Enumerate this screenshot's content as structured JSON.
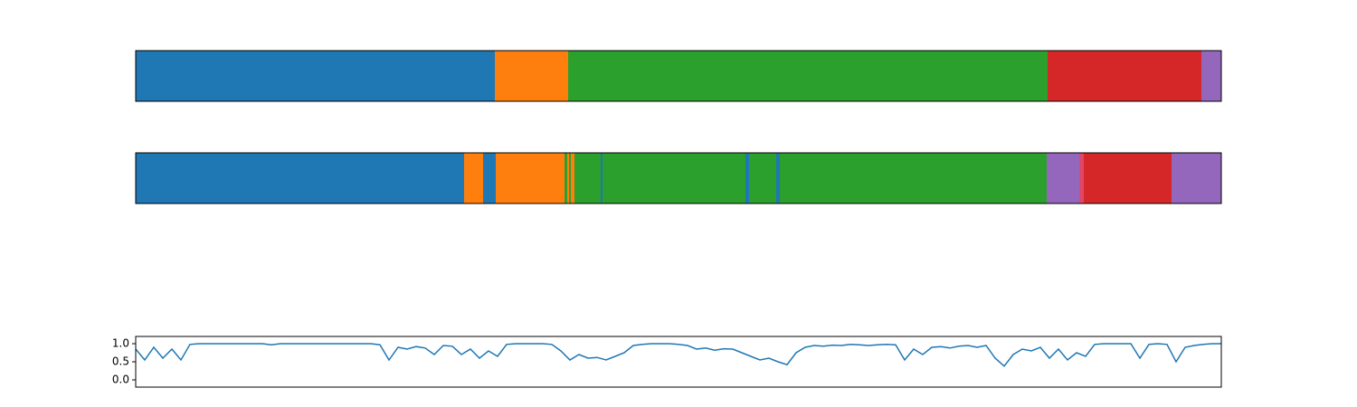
{
  "chart_data": [
    {
      "type": "segments",
      "xlim": [
        0,
        1200
      ],
      "segments": [
        {
          "start": 0,
          "end": 397,
          "color": "#1f77b4"
        },
        {
          "start": 397,
          "end": 478,
          "color": "#ff7f0e"
        },
        {
          "start": 478,
          "end": 1008,
          "color": "#2ca02c"
        },
        {
          "start": 1008,
          "end": 1178,
          "color": "#d62728"
        },
        {
          "start": 1178,
          "end": 1200,
          "color": "#9467bd"
        }
      ]
    },
    {
      "type": "segments",
      "xlim": [
        0,
        1200
      ],
      "segments": [
        {
          "start": 0,
          "end": 363,
          "color": "#1f77b4"
        },
        {
          "start": 363,
          "end": 384,
          "color": "#ff7f0e"
        },
        {
          "start": 384,
          "end": 398,
          "color": "#1f77b4"
        },
        {
          "start": 398,
          "end": 474,
          "color": "#ff7f0e"
        },
        {
          "start": 474,
          "end": 477,
          "color": "#2ca02c"
        },
        {
          "start": 477,
          "end": 479,
          "color": "#ff7f0e"
        },
        {
          "start": 479,
          "end": 481,
          "color": "#2ca02c"
        },
        {
          "start": 481,
          "end": 485,
          "color": "#ff7f0e"
        },
        {
          "start": 485,
          "end": 514,
          "color": "#2ca02c"
        },
        {
          "start": 514,
          "end": 516,
          "color": "#1f77b4"
        },
        {
          "start": 516,
          "end": 674,
          "color": "#2ca02c"
        },
        {
          "start": 674,
          "end": 678,
          "color": "#1f77b4"
        },
        {
          "start": 678,
          "end": 708,
          "color": "#2ca02c"
        },
        {
          "start": 708,
          "end": 712,
          "color": "#1f77b4"
        },
        {
          "start": 712,
          "end": 1007,
          "color": "#2ca02c"
        },
        {
          "start": 1007,
          "end": 1043,
          "color": "#9467bd"
        },
        {
          "start": 1043,
          "end": 1048,
          "color": "#e0456a"
        },
        {
          "start": 1048,
          "end": 1145,
          "color": "#d62728"
        },
        {
          "start": 1145,
          "end": 1200,
          "color": "#9467bd"
        }
      ]
    },
    {
      "type": "line",
      "xlim": [
        0,
        1200
      ],
      "ylim": [
        -0.2,
        1.2
      ],
      "yticks": [
        {
          "value": 0,
          "label": "0.0"
        },
        {
          "value": 0.5,
          "label": "0.5"
        },
        {
          "value": 1,
          "label": "1.0"
        }
      ],
      "x": [
        0,
        10,
        20,
        30,
        40,
        50,
        60,
        70,
        80,
        90,
        100,
        110,
        120,
        130,
        140,
        150,
        160,
        170,
        180,
        190,
        200,
        210,
        220,
        230,
        240,
        250,
        260,
        270,
        280,
        290,
        300,
        310,
        320,
        330,
        340,
        350,
        360,
        370,
        380,
        390,
        400,
        410,
        420,
        430,
        440,
        450,
        460,
        470,
        480,
        490,
        500,
        510,
        520,
        530,
        540,
        550,
        560,
        570,
        580,
        590,
        600,
        610,
        620,
        630,
        640,
        650,
        660,
        670,
        680,
        690,
        700,
        710,
        720,
        730,
        740,
        750,
        760,
        770,
        780,
        790,
        800,
        810,
        820,
        830,
        840,
        850,
        860,
        870,
        880,
        890,
        900,
        910,
        920,
        930,
        940,
        950,
        960,
        970,
        980,
        990,
        1000,
        1010,
        1020,
        1030,
        1040,
        1050,
        1060,
        1070,
        1080,
        1090,
        1100,
        1110,
        1120,
        1130,
        1140,
        1150,
        1160,
        1170,
        1180,
        1190,
        1200
      ],
      "series": [
        {
          "color": "#1f77b4",
          "values": [
            0.85,
            0.55,
            0.9,
            0.6,
            0.85,
            0.55,
            0.98,
            1,
            1,
            1,
            1,
            1,
            1,
            1,
            1,
            0.97,
            1,
            1,
            1,
            1,
            1,
            1,
            1,
            1,
            1,
            1,
            1,
            0.97,
            0.55,
            0.9,
            0.85,
            0.92,
            0.88,
            0.7,
            0.95,
            0.93,
            0.7,
            0.85,
            0.6,
            0.8,
            0.65,
            0.98,
            1,
            1,
            1,
            1,
            0.98,
            0.8,
            0.55,
            0.7,
            0.6,
            0.62,
            0.55,
            0.65,
            0.75,
            0.95,
            0.98,
            1,
            1,
            1,
            0.98,
            0.95,
            0.85,
            0.88,
            0.82,
            0.86,
            0.85,
            0.75,
            0.65,
            0.55,
            0.6,
            0.5,
            0.42,
            0.75,
            0.9,
            0.95,
            0.93,
            0.96,
            0.95,
            0.98,
            0.97,
            0.95,
            0.97,
            0.98,
            0.97,
            0.55,
            0.85,
            0.7,
            0.9,
            0.92,
            0.88,
            0.93,
            0.95,
            0.9,
            0.95,
            0.6,
            0.38,
            0.7,
            0.85,
            0.8,
            0.9,
            0.6,
            0.85,
            0.55,
            0.75,
            0.65,
            0.98,
            1,
            1,
            1,
            1,
            0.6,
            0.98,
            1,
            0.98,
            0.5,
            0.9,
            0.95,
            0.98,
            1,
            1
          ]
        }
      ]
    }
  ]
}
